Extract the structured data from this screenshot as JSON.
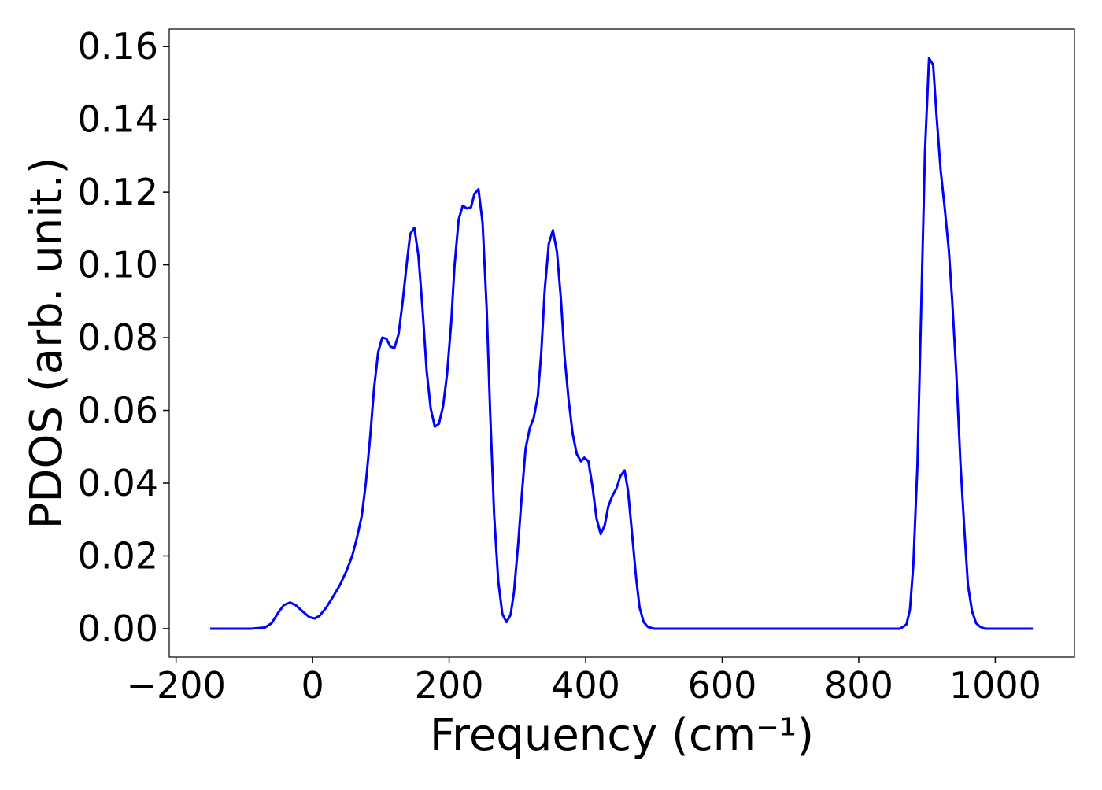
{
  "chart_data": {
    "type": "line",
    "xlabel": "Frequency (cm⁻¹)",
    "ylabel": "PDOS (arb. unit.)",
    "xlim": [
      -210,
      1116
    ],
    "ylim": [
      -0.0078,
      0.1648
    ],
    "xticks": [
      {
        "value": -200,
        "label": "−200"
      },
      0,
      200,
      400,
      600,
      800,
      1000
    ],
    "yticks": [
      {
        "value": 0,
        "label": "0.00"
      },
      {
        "value": 0.02,
        "label": "0.02"
      },
      {
        "value": 0.04,
        "label": "0.04"
      },
      {
        "value": 0.06,
        "label": "0.06"
      },
      {
        "value": 0.08,
        "label": "0.08"
      },
      {
        "value": 0.1,
        "label": "0.10"
      },
      {
        "value": 0.12,
        "label": "0.12"
      },
      {
        "value": 0.14,
        "label": "0.14"
      },
      {
        "value": 0.16,
        "label": "0.16"
      }
    ],
    "x": [
      -150,
      -90,
      -70,
      -60,
      -50,
      -42,
      -33,
      -25,
      -15,
      -5,
      3,
      10,
      20,
      30,
      40,
      50,
      58,
      65,
      72,
      78,
      84,
      90,
      96,
      102,
      108,
      114,
      120,
      126,
      132,
      138,
      143,
      149,
      155,
      161,
      167,
      173,
      179,
      185,
      191,
      197,
      203,
      208,
      214,
      220,
      226,
      232,
      237,
      243,
      249,
      255,
      260,
      266,
      272,
      278,
      284,
      290,
      295,
      301,
      307,
      312,
      318,
      324,
      330,
      335,
      340,
      346,
      352,
      358,
      364,
      369,
      375,
      381,
      387,
      393,
      398,
      404,
      410,
      416,
      422,
      428,
      433,
      439,
      445,
      451,
      457,
      462,
      468,
      474,
      479,
      485,
      491,
      500,
      860,
      865,
      870,
      875,
      880,
      886,
      891,
      897,
      903,
      909,
      914,
      920,
      926,
      932,
      937,
      943,
      949,
      955,
      960,
      966,
      972,
      978,
      985,
      1055
    ],
    "series": [
      {
        "color": "#0000ff",
        "values": [
          0,
          0,
          0.0003,
          0.0015,
          0.0045,
          0.0065,
          0.0072,
          0.0065,
          0.0048,
          0.0032,
          0.0028,
          0.0035,
          0.0058,
          0.0088,
          0.012,
          0.016,
          0.02,
          0.025,
          0.031,
          0.04,
          0.052,
          0.066,
          0.076,
          0.08,
          0.0797,
          0.0775,
          0.0772,
          0.081,
          0.09,
          0.1005,
          0.1085,
          0.1102,
          0.1025,
          0.088,
          0.071,
          0.0605,
          0.0555,
          0.0563,
          0.061,
          0.07,
          0.084,
          0.1,
          0.1125,
          0.1163,
          0.1155,
          0.1158,
          0.1195,
          0.1208,
          0.1115,
          0.088,
          0.06,
          0.031,
          0.013,
          0.004,
          0.0018,
          0.0038,
          0.01,
          0.023,
          0.038,
          0.0495,
          0.055,
          0.058,
          0.064,
          0.076,
          0.093,
          0.1058,
          0.1095,
          0.1035,
          0.09,
          0.075,
          0.063,
          0.0535,
          0.048,
          0.046,
          0.047,
          0.046,
          0.039,
          0.0302,
          0.026,
          0.0285,
          0.0335,
          0.0365,
          0.0385,
          0.042,
          0.0435,
          0.038,
          0.026,
          0.0138,
          0.0058,
          0.0018,
          0.0005,
          0,
          0,
          0.0005,
          0.0012,
          0.0052,
          0.0175,
          0.045,
          0.084,
          0.131,
          0.1568,
          0.155,
          0.141,
          0.126,
          0.1155,
          0.104,
          0.09,
          0.07,
          0.0455,
          0.0265,
          0.012,
          0.0048,
          0.0015,
          0.0005,
          0,
          0
        ]
      }
    ]
  }
}
